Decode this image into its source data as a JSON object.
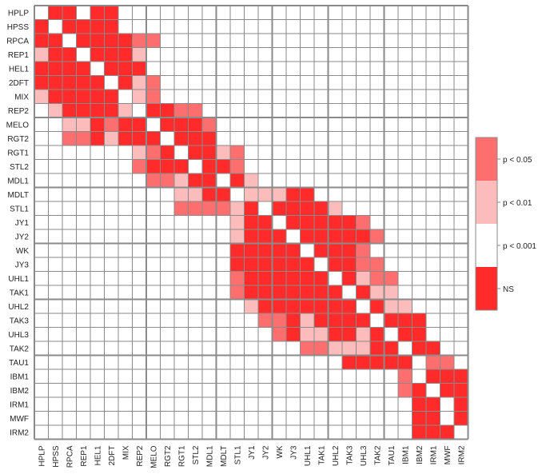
{
  "chart_data": {
    "type": "heatmap",
    "labels": [
      "HPLP",
      "HPSS",
      "RPCA",
      "REP1",
      "HEL1",
      "2DFT",
      "MIX",
      "REP2",
      "MELO",
      "RGT2",
      "RGT1",
      "STL2",
      "MDL1",
      "MDLT",
      "STL1",
      "JY1",
      "JY2",
      "WK",
      "JY3",
      "UHL1",
      "TAK1",
      "UHL2",
      "TAK3",
      "UHL3",
      "TAK2",
      "TAU1",
      "IBM1",
      "IBM2",
      "IRM1",
      "MWF",
      "IRM2"
    ],
    "level_codes": "0 = white, 1 = pink, 2 = light pink, 3 = red",
    "matrix_rows": [
      "0330330000000000000000000000000",
      "3033330000000000000000000000000",
      "3303333110000000000000000000000",
      "2330333200000000000000000000000",
      "3333033300000000000000000000000",
      "3333303210000000000000000000000",
      "2333330210000000000000000000000",
      "0233332033110000000000000000000",
      "0022313303331000000000000000000",
      "0011323330333000000000000000000",
      "0000000213033210000000000000000",
      "0000000133303310000000000000000",
      "0000000011233032000000000000000",
      "0000000000223302223300000000000",
      "0000000000111123033332000000000",
      "0000000000000023303333310000000",
      "0000000000000023330333331000000",
      "0000000000000033333033310000000",
      "0000000000000033333303311000000",
      "0000000000000013333330321100000",
      "0000000000000013333333032200000",
      "0000000000000002333333303220000",
      "0000000000000000113233330333000",
      "0000000000000000013223323033000",
      "0000000000000000000112223303300",
      "0000000000000000000000333330110",
      "0000000000000000000000000010333",
      "0000000000000000000000000013033",
      "0000000000000000000000000003303",
      "0000000000000000000000000003303",
      "0000000000000000000000000003330"
    ],
    "group_breaks_after": [
      7,
      12,
      16,
      20,
      24
    ],
    "colorbar": [
      {
        "label": "p < 0.05",
        "color": "#fd6e6e"
      },
      {
        "label": "p < 0.01",
        "color": "#fdbcbc"
      },
      {
        "label": "p < 0.001",
        "color": "#ffffff"
      },
      {
        "label": "NS",
        "color": "#ff2a2a"
      }
    ],
    "level_colors": [
      "#ffffff",
      "#fd6e6e",
      "#fdbcbc",
      "#ff2a2a"
    ],
    "grid_color": "#8a8a8a",
    "grid": true,
    "legend_position": "right"
  }
}
